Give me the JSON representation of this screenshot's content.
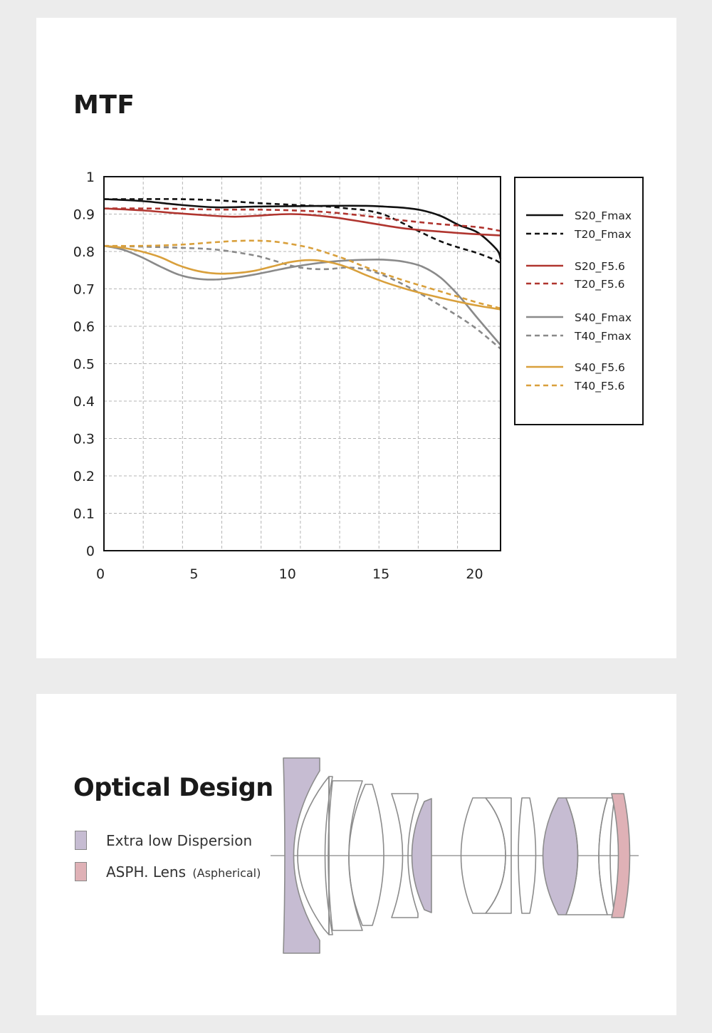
{
  "mtf": {
    "title": "MTF"
  },
  "chart_data": {
    "type": "line",
    "title": "MTF",
    "xlabel": "",
    "ylabel": "",
    "xlim": [
      0,
      21.2
    ],
    "ylim": [
      0,
      1
    ],
    "x_ticks": [
      "0",
      "5",
      "10",
      "15",
      "20"
    ],
    "y_ticks": [
      "0",
      "0.1",
      "0.2",
      "0.3",
      "0.4",
      "0.5",
      "0.6",
      "0.7",
      "0.8",
      "0.9",
      "1"
    ],
    "grid": true,
    "legend_position": "right",
    "series": [
      {
        "name": "S20_Fmax",
        "color": "#111111",
        "dash": false,
        "x": [
          0,
          2,
          4,
          6,
          8,
          10,
          12,
          14,
          15,
          16,
          17,
          18,
          19,
          20,
          21,
          21.2
        ],
        "y": [
          0.94,
          0.935,
          0.925,
          0.918,
          0.92,
          0.921,
          0.922,
          0.922,
          0.92,
          0.917,
          0.91,
          0.895,
          0.87,
          0.85,
          0.805,
          0.78
        ]
      },
      {
        "name": "T20_Fmax",
        "color": "#111111",
        "dash": true,
        "x": [
          0,
          2,
          4,
          6,
          8,
          10,
          12,
          13,
          14,
          15,
          16,
          17,
          18,
          19,
          20,
          21,
          21.2
        ],
        "y": [
          0.94,
          0.94,
          0.94,
          0.937,
          0.93,
          0.925,
          0.92,
          0.915,
          0.91,
          0.898,
          0.875,
          0.85,
          0.827,
          0.81,
          0.795,
          0.775,
          0.765
        ]
      },
      {
        "name": "S20_F5.6",
        "color": "#b0352f",
        "dash": false,
        "x": [
          0,
          2,
          4,
          6,
          7,
          8,
          10,
          12,
          14,
          16,
          18,
          20,
          21.2
        ],
        "y": [
          0.915,
          0.91,
          0.902,
          0.895,
          0.893,
          0.895,
          0.9,
          0.893,
          0.878,
          0.862,
          0.853,
          0.846,
          0.843
        ]
      },
      {
        "name": "T20_F5.6",
        "color": "#b0352f",
        "dash": true,
        "x": [
          0,
          2,
          4,
          6,
          8,
          10,
          12,
          14,
          16,
          18,
          20,
          21.2
        ],
        "y": [
          0.915,
          0.915,
          0.914,
          0.912,
          0.912,
          0.91,
          0.905,
          0.895,
          0.883,
          0.873,
          0.865,
          0.855
        ]
      },
      {
        "name": "S40_Fmax",
        "color": "#8a8a8a",
        "dash": false,
        "x": [
          0,
          1,
          2,
          3,
          4,
          5,
          6,
          7,
          8,
          9,
          10,
          11,
          12,
          13,
          14,
          15,
          16,
          17,
          18,
          19,
          20,
          21.2
        ],
        "y": [
          0.815,
          0.805,
          0.785,
          0.76,
          0.738,
          0.727,
          0.725,
          0.73,
          0.738,
          0.748,
          0.758,
          0.766,
          0.772,
          0.776,
          0.778,
          0.778,
          0.773,
          0.76,
          0.73,
          0.68,
          0.62,
          0.55
        ]
      },
      {
        "name": "T40_Fmax",
        "color": "#8a8a8a",
        "dash": true,
        "x": [
          0,
          2,
          4,
          6,
          8,
          9,
          10,
          11,
          12,
          13,
          14,
          15,
          16,
          17,
          18,
          19,
          20,
          21.2
        ],
        "y": [
          0.815,
          0.813,
          0.81,
          0.805,
          0.79,
          0.777,
          0.762,
          0.754,
          0.753,
          0.757,
          0.752,
          0.735,
          0.712,
          0.685,
          0.655,
          0.625,
          0.59,
          0.54
        ]
      },
      {
        "name": "S40_F5.6",
        "color": "#d9a03c",
        "dash": false,
        "x": [
          0,
          1,
          2,
          3,
          4,
          5,
          6,
          7,
          8,
          9,
          10,
          11,
          12,
          13,
          14,
          15,
          16,
          17,
          18,
          19,
          20,
          21.2
        ],
        "y": [
          0.815,
          0.81,
          0.8,
          0.785,
          0.763,
          0.748,
          0.741,
          0.742,
          0.748,
          0.76,
          0.772,
          0.777,
          0.772,
          0.758,
          0.737,
          0.718,
          0.702,
          0.688,
          0.676,
          0.665,
          0.655,
          0.645
        ]
      },
      {
        "name": "T40_F5.6",
        "color": "#d9a03c",
        "dash": true,
        "x": [
          0,
          2,
          4,
          6,
          7,
          8,
          9,
          10,
          11,
          12,
          13,
          14,
          15,
          16,
          17,
          18,
          19,
          20,
          21.2
        ],
        "y": [
          0.815,
          0.815,
          0.818,
          0.825,
          0.828,
          0.829,
          0.827,
          0.82,
          0.81,
          0.795,
          0.778,
          0.758,
          0.74,
          0.723,
          0.708,
          0.693,
          0.678,
          0.663,
          0.648
        ]
      }
    ]
  },
  "optics": {
    "title": "Optical Design",
    "legend": [
      {
        "label": "Extra low Dispersion",
        "note": "",
        "color": "#c6bcd2"
      },
      {
        "label": "ASPH. Lens",
        "note": "(Aspherical)",
        "color": "#dfb1b6"
      }
    ]
  }
}
